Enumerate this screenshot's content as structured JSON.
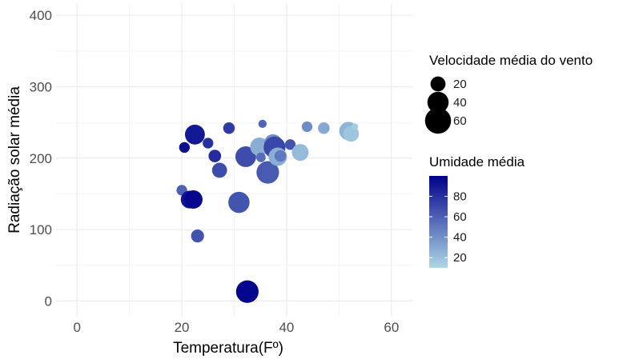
{
  "chart_data": {
    "type": "scatter",
    "xlabel": "Temperatura(Fº)",
    "ylabel": "Radiação solar média",
    "xlim": [
      -4,
      64
    ],
    "ylim": [
      -22,
      417
    ],
    "x_ticks": [
      0,
      20,
      40,
      60
    ],
    "y_ticks": [
      0,
      100,
      200,
      300,
      400
    ],
    "grid": true,
    "legend_position": "right",
    "size_legend": {
      "title": "Velocidade média do vento",
      "values": [
        20,
        40,
        60
      ]
    },
    "color_legend": {
      "title": "Umidade média",
      "ticks": [
        20,
        40,
        60,
        80
      ],
      "range": [
        10,
        100
      ],
      "low_color": "#add8e6",
      "high_color": "#00008b"
    },
    "points": [
      {
        "x": 20.0,
        "y": 155,
        "wind": 10,
        "humidity": 60
      },
      {
        "x": 20.5,
        "y": 215,
        "wind": 10,
        "humidity": 95
      },
      {
        "x": 21.5,
        "y": 142,
        "wind": 28,
        "humidity": 92
      },
      {
        "x": 22.2,
        "y": 142,
        "wind": 30,
        "humidity": 97
      },
      {
        "x": 22.5,
        "y": 233,
        "wind": 35,
        "humidity": 90
      },
      {
        "x": 23.0,
        "y": 91,
        "wind": 15,
        "humidity": 65
      },
      {
        "x": 25.0,
        "y": 221,
        "wind": 10,
        "humidity": 80
      },
      {
        "x": 26.3,
        "y": 203,
        "wind": 14,
        "humidity": 82
      },
      {
        "x": 27.2,
        "y": 183,
        "wind": 20,
        "humidity": 68
      },
      {
        "x": 29.0,
        "y": 242,
        "wind": 12,
        "humidity": 75
      },
      {
        "x": 30.9,
        "y": 138,
        "wind": 40,
        "humidity": 65
      },
      {
        "x": 32.2,
        "y": 202,
        "wind": 38,
        "humidity": 68
      },
      {
        "x": 32.5,
        "y": 13,
        "wind": 45,
        "humidity": 98
      },
      {
        "x": 34.8,
        "y": 216,
        "wind": 30,
        "humidity": 28
      },
      {
        "x": 35.1,
        "y": 201,
        "wind": 8,
        "humidity": 55
      },
      {
        "x": 35.4,
        "y": 248,
        "wind": 6,
        "humidity": 58
      },
      {
        "x": 36.4,
        "y": 180,
        "wind": 45,
        "humidity": 62
      },
      {
        "x": 37.4,
        "y": 221,
        "wind": 28,
        "humidity": 40
      },
      {
        "x": 37.7,
        "y": 215,
        "wind": 42,
        "humidity": 70
      },
      {
        "x": 38.3,
        "y": 202,
        "wind": 30,
        "humidity": 28
      },
      {
        "x": 38.8,
        "y": 203,
        "wind": 12,
        "humidity": 50
      },
      {
        "x": 40.7,
        "y": 219,
        "wind": 10,
        "humidity": 65
      },
      {
        "x": 42.6,
        "y": 208,
        "wind": 25,
        "humidity": 22
      },
      {
        "x": 43.9,
        "y": 244,
        "wind": 10,
        "humidity": 42
      },
      {
        "x": 47.1,
        "y": 242,
        "wind": 12,
        "humidity": 30
      },
      {
        "x": 51.8,
        "y": 238,
        "wind": 30,
        "humidity": 25
      },
      {
        "x": 52.3,
        "y": 234,
        "wind": 22,
        "humidity": 18
      },
      {
        "x": 53.0,
        "y": 244,
        "wind": 4,
        "humidity": 15
      }
    ]
  }
}
